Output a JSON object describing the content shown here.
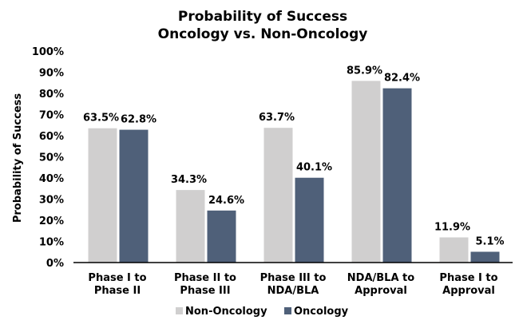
{
  "chart_data": {
    "type": "bar",
    "title": "Probability of Success",
    "subtitle": "Oncology vs. Non-Oncology",
    "ylabel": "Probability of Success",
    "xlabel": "",
    "ylim": [
      0,
      100
    ],
    "yticks": [
      "0%",
      "10%",
      "20%",
      "30%",
      "40%",
      "50%",
      "60%",
      "70%",
      "80%",
      "90%",
      "100%"
    ],
    "categories": [
      [
        "Phase I to",
        "Phase II"
      ],
      [
        "Phase II to",
        "Phase III"
      ],
      [
        "Phase III to",
        "NDA/BLA"
      ],
      [
        "NDA/BLA to",
        "Approval"
      ],
      [
        "Phase I to",
        "Approval"
      ]
    ],
    "series": [
      {
        "name": "Non-Oncology",
        "color": "#d0cfcf",
        "values": [
          63.5,
          34.3,
          63.7,
          85.9,
          11.9
        ],
        "labels": [
          "63.5%",
          "34.3%",
          "63.7%",
          "85.9%",
          "11.9%"
        ]
      },
      {
        "name": "Oncology",
        "color": "#4f6079",
        "values": [
          62.8,
          24.6,
          40.1,
          82.4,
          5.1
        ],
        "labels": [
          "62.8%",
          "24.6%",
          "40.1%",
          "82.4%",
          "5.1%"
        ]
      }
    ],
    "grid": false,
    "legend_position": "bottom"
  }
}
